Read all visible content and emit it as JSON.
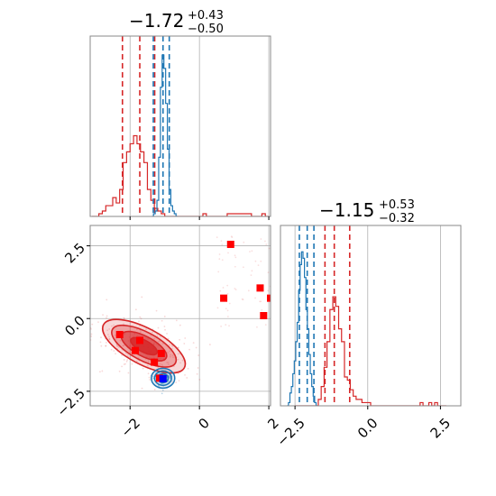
{
  "chart_data": {
    "type": "corner",
    "params": [
      {
        "title": "−1.72",
        "title_plus": "+0.43",
        "title_minus": "−0.50",
        "range": [
          -3.15,
          2.05
        ],
        "ticks": [
          -2,
          0,
          2
        ],
        "tick_labels": [
          "−2",
          "0",
          "2"
        ]
      },
      {
        "title": "−1.15",
        "title_plus": "+0.53",
        "title_minus": "−0.32",
        "range": [
          -3.0,
          3.2
        ],
        "ticks": [
          -2.5,
          0.0,
          2.5
        ],
        "tick_labels": [
          "−2.5",
          "0.0",
          "2.5"
        ]
      }
    ],
    "grid": true,
    "series": [
      {
        "color": "#d62728",
        "hist1_x": [
          -3.05,
          -2.95,
          -2.85,
          -2.75,
          -2.65,
          -2.55,
          -2.45,
          -2.35,
          -2.25,
          -2.15,
          -2.05,
          -1.95,
          -1.85,
          -1.75,
          -1.65,
          -1.55,
          -1.45,
          -1.35,
          -1.25,
          -1.15,
          -1.05,
          -0.95,
          -0.85,
          -0.75,
          -0.65,
          -0.55,
          -0.45,
          -0.35,
          -0.25,
          -0.15,
          -0.05,
          0.05,
          0.15,
          0.25,
          0.35,
          0.45,
          0.55,
          0.65,
          0.75,
          0.85,
          0.95,
          1.05,
          1.15,
          1.25,
          1.35,
          1.45,
          1.55,
          1.65,
          1.75,
          1.85,
          1.95
        ],
        "hist1_y": [
          0,
          0,
          1,
          2,
          4,
          4,
          7,
          5,
          10,
          20,
          24,
          27,
          30,
          27,
          24,
          20,
          10,
          6,
          3,
          2,
          1,
          0,
          0,
          0,
          0,
          0,
          0,
          0,
          0,
          0,
          0,
          0,
          1,
          0,
          0,
          0,
          0,
          0,
          0,
          1,
          1,
          1,
          1,
          1,
          1,
          1,
          0,
          0,
          0,
          1,
          0
        ],
        "hist2_x": [
          -2.45,
          -2.35,
          -2.25,
          -2.15,
          -2.05,
          -1.95,
          -1.85,
          -1.75,
          -1.65,
          -1.55,
          -1.45,
          -1.35,
          -1.25,
          -1.15,
          -1.05,
          -0.95,
          -0.85,
          -0.75,
          -0.65,
          -0.55,
          -0.45,
          -0.35,
          -0.25,
          -0.15,
          -0.05,
          0.05,
          0.15,
          0.25,
          0.35,
          0.45,
          0.55,
          0.65,
          0.75,
          0.85,
          0.95,
          1.05,
          1.15,
          1.25,
          1.35,
          1.45,
          1.55,
          1.65,
          1.75,
          1.85,
          1.95,
          2.05,
          2.15,
          2.25,
          2.35,
          2.45,
          2.55,
          2.65
        ],
        "hist2_y": [
          0,
          0,
          0,
          0,
          0,
          0,
          0,
          0,
          2,
          6,
          12,
          20,
          30,
          34,
          31,
          24,
          20,
          9,
          8,
          5,
          3,
          2,
          2,
          1,
          1,
          1,
          0,
          0,
          0,
          0,
          0,
          0,
          0,
          0,
          0,
          0,
          0,
          0,
          0,
          0,
          0,
          0,
          0,
          1,
          0,
          0,
          1,
          0,
          1,
          0,
          0,
          0
        ],
        "quantiles_x": [
          -2.22,
          -1.72,
          -1.29
        ],
        "quantiles_y": [
          -1.47,
          -1.15,
          -0.62
        ],
        "contour_centers": [
          [
            -2.2,
            -0.55
          ],
          [
            -1.55,
            -1.0
          ],
          [
            -1.05,
            -1.5
          ]
        ],
        "points": [
          [
            -2.3,
            -0.55
          ],
          [
            -1.72,
            -0.75
          ],
          [
            -1.85,
            -1.1
          ],
          [
            -1.1,
            -1.2
          ],
          [
            -1.3,
            -1.5
          ],
          [
            -1.15,
            -2.05
          ],
          [
            0.9,
            2.55
          ],
          [
            0.7,
            0.7
          ],
          [
            1.75,
            1.05
          ],
          [
            1.85,
            0.1
          ],
          [
            2.05,
            0.7
          ]
        ]
      },
      {
        "color": "#1f77b4",
        "hist1_x": [
          -1.35,
          -1.3,
          -1.25,
          -1.2,
          -1.15,
          -1.1,
          -1.05,
          -1.0,
          -0.95,
          -0.9,
          -0.85,
          -0.8,
          -0.75,
          -0.7,
          -0.65
        ],
        "hist1_y": [
          0,
          1,
          2,
          6,
          22,
          48,
          60,
          55,
          42,
          25,
          10,
          4,
          2,
          1,
          0
        ],
        "hist2_x": [
          -2.75,
          -2.7,
          -2.65,
          -2.6,
          -2.55,
          -2.5,
          -2.45,
          -2.4,
          -2.35,
          -2.3,
          -2.25,
          -2.2,
          -2.15,
          -2.1,
          -2.05,
          -2.0,
          -1.95,
          -1.9,
          -1.85,
          -1.8,
          -1.75
        ],
        "hist2_y": [
          0,
          1,
          4,
          6,
          10,
          14,
          20,
          26,
          36,
          44,
          48,
          46,
          40,
          30,
          24,
          16,
          10,
          6,
          3,
          1,
          0
        ],
        "quantiles_x": [
          -1.33,
          -1.05,
          -0.87
        ],
        "quantiles_y": [
          -2.35,
          -2.08,
          -1.85
        ],
        "contour_center": [
          -1.05,
          -2.05
        ],
        "truth_point": [
          -1.05,
          -2.07
        ]
      }
    ]
  }
}
